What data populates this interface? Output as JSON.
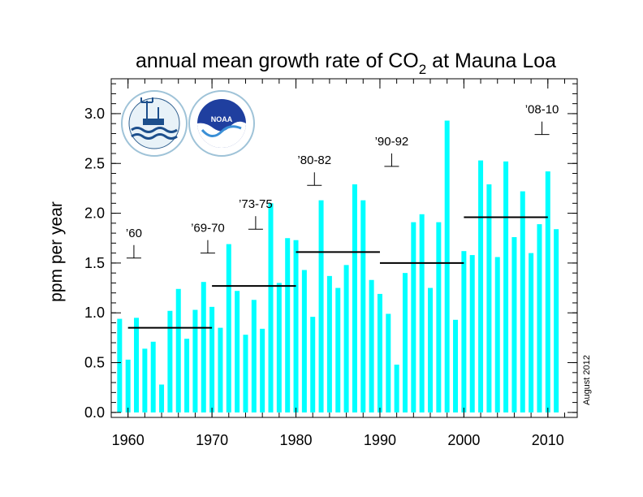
{
  "chart_data": {
    "type": "bar",
    "title_main": "annual mean growth rate of CO",
    "title_sub": "2",
    "title_tail": " at Mauna Loa",
    "ylabel": "ppm per year",
    "xlabel": "",
    "date_note": "August 2012",
    "bar_color": "#00ffff",
    "xlim": [
      1958,
      2013.5
    ],
    "ylim": [
      -0.05,
      3.35
    ],
    "x_ticks": [
      1960,
      1970,
      1980,
      1990,
      2000,
      2010
    ],
    "x_tick_labels": [
      "1960",
      "1970",
      "1980",
      "1990",
      "2000",
      "2010"
    ],
    "y_ticks": [
      0.0,
      0.5,
      1.0,
      1.5,
      2.0,
      2.5,
      3.0
    ],
    "y_tick_labels": [
      "0.0",
      "0.5",
      "1.0",
      "1.5",
      "2.0",
      "2.5",
      "3.0"
    ],
    "years": [
      1959,
      1960,
      1961,
      1962,
      1963,
      1964,
      1965,
      1966,
      1967,
      1968,
      1969,
      1970,
      1971,
      1972,
      1973,
      1974,
      1975,
      1976,
      1977,
      1978,
      1979,
      1980,
      1981,
      1982,
      1983,
      1984,
      1985,
      1986,
      1987,
      1988,
      1989,
      1990,
      1991,
      1992,
      1993,
      1994,
      1995,
      1996,
      1997,
      1998,
      1999,
      2000,
      2001,
      2002,
      2003,
      2004,
      2005,
      2006,
      2007,
      2008,
      2009,
      2010,
      2011
    ],
    "values": [
      0.94,
      0.53,
      0.95,
      0.64,
      0.71,
      0.28,
      1.02,
      1.24,
      0.74,
      1.03,
      1.31,
      1.06,
      0.85,
      1.69,
      1.22,
      0.78,
      1.13,
      0.84,
      2.1,
      1.3,
      1.75,
      1.73,
      1.43,
      0.96,
      2.13,
      1.37,
      1.25,
      1.48,
      2.29,
      2.13,
      1.33,
      1.19,
      0.99,
      0.48,
      1.4,
      1.91,
      1.99,
      1.25,
      1.91,
      2.93,
      0.93,
      1.62,
      1.58,
      2.53,
      2.29,
      1.56,
      2.52,
      1.76,
      2.22,
      1.6,
      1.89,
      2.42,
      1.84
    ],
    "decade_means": [
      {
        "start": 1960,
        "end": 1970,
        "value": 0.85
      },
      {
        "start": 1970,
        "end": 1980,
        "value": 1.27
      },
      {
        "start": 1980,
        "end": 1990,
        "value": 1.61
      },
      {
        "start": 1990,
        "end": 2000,
        "value": 1.5
      },
      {
        "start": 2000,
        "end": 2010,
        "value": 1.96
      }
    ],
    "annotations": [
      {
        "text": "’60",
        "x": 1960.7,
        "y": 1.55
      },
      {
        "text": "’69-70",
        "x": 1969.5,
        "y": 1.6
      },
      {
        "text": "’73-75",
        "x": 1975.2,
        "y": 1.84
      },
      {
        "text": "’80-82",
        "x": 1982.2,
        "y": 2.28
      },
      {
        "text": "’90-92",
        "x": 1991.4,
        "y": 2.47
      },
      {
        "text": "’08-10",
        "x": 2009.3,
        "y": 2.79
      }
    ]
  },
  "logos": {
    "left_icon": "scripps-institution-logo",
    "right_icon": "noaa-logo",
    "right_text": "NOAA"
  }
}
